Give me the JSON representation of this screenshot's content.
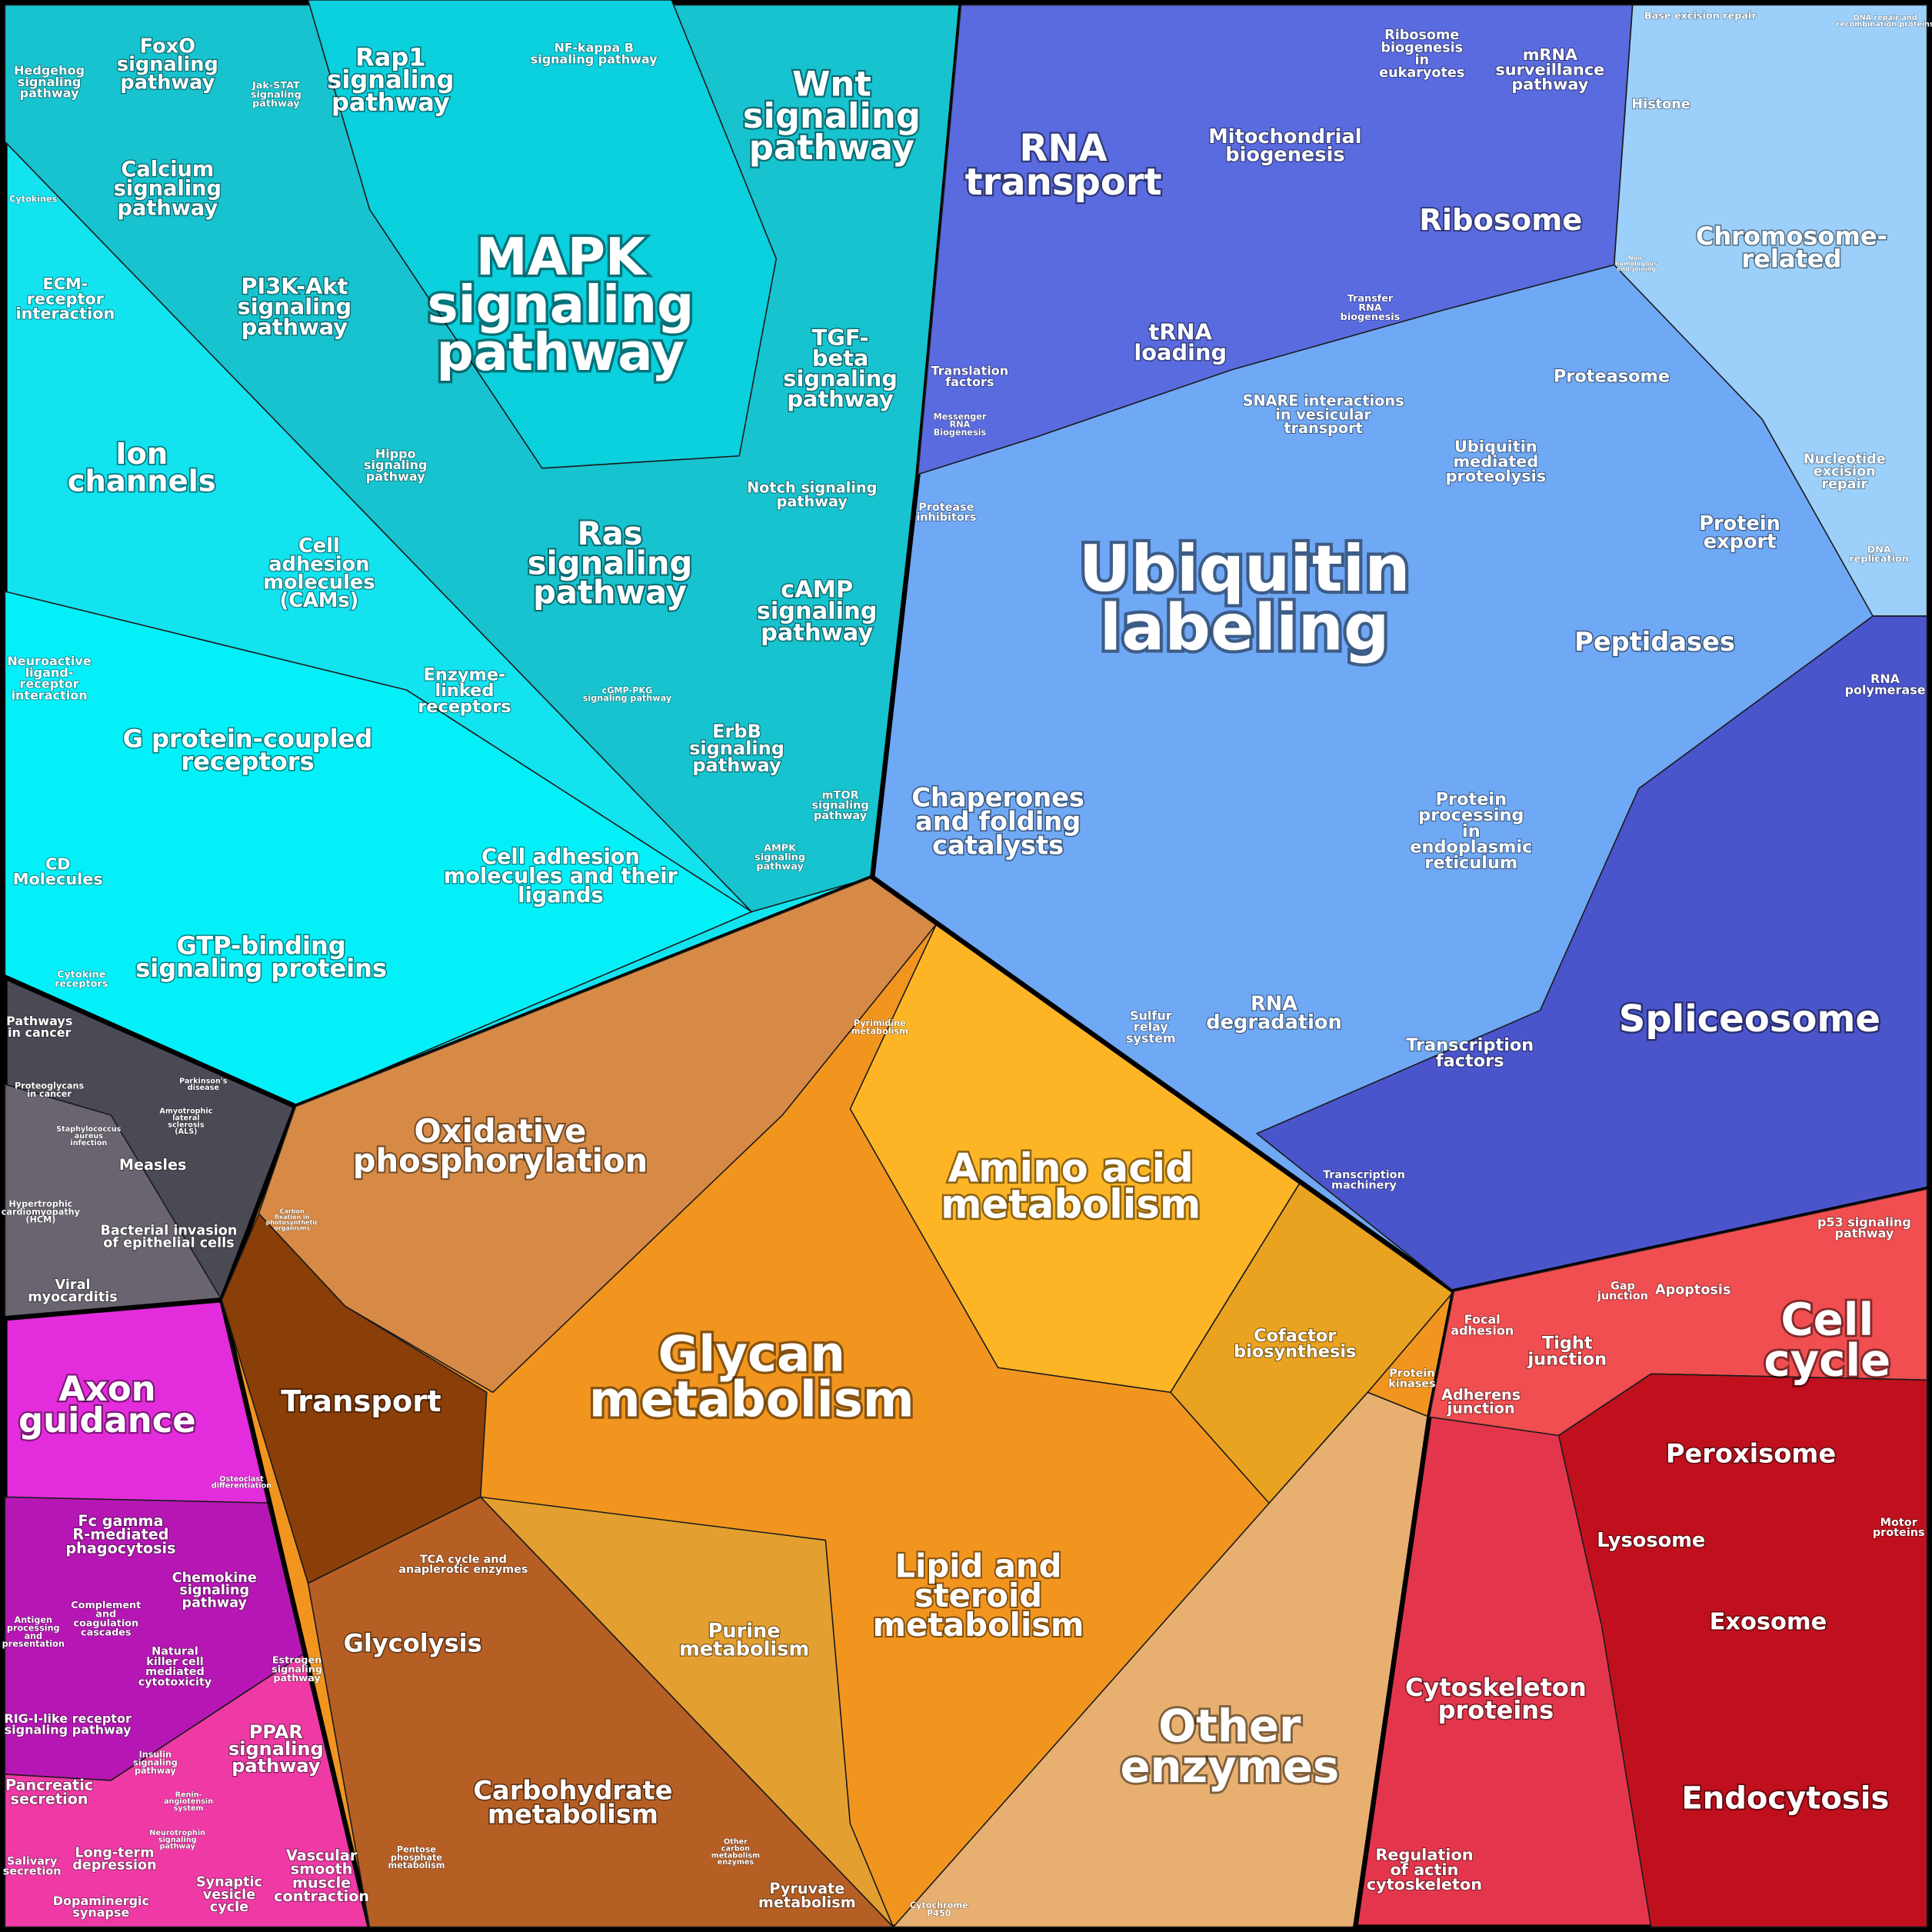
{
  "labels": [
    [
      "Hedgehog",
      "signaling",
      "pathway"
    ],
    [
      "FoxO",
      "signaling",
      "pathway"
    ],
    [
      "Jak-STAT",
      "signaling",
      "pathway"
    ],
    [
      "Rap1",
      "signaling",
      "pathway"
    ],
    [
      "NF-kappa B",
      "signaling pathway"
    ],
    [
      "Wnt",
      "signaling",
      "pathway"
    ],
    [
      "Cytokines"
    ],
    [
      "Calcium",
      "signaling",
      "pathway"
    ],
    [
      "ECM-",
      "receptor",
      "interaction"
    ],
    [
      "PI3K-Akt",
      "signaling",
      "pathway"
    ],
    [
      "MAPK",
      "signaling",
      "pathway"
    ],
    [
      "TGF-",
      "beta",
      "signaling",
      "pathway"
    ],
    [
      "Ion",
      "channels"
    ],
    [
      "Hippo",
      "signaling",
      "pathway"
    ],
    [
      "Notch signaling",
      "pathway"
    ],
    [
      "Ras",
      "signaling",
      "pathway"
    ],
    [
      "Cell",
      "adhesion",
      "molecules",
      "(CAMs)"
    ],
    [
      "cAMP",
      "signaling",
      "pathway"
    ],
    [
      "Neuroactive",
      "ligand-",
      "receptor",
      "interaction"
    ],
    [
      "Enzyme-",
      "linked",
      "receptors"
    ],
    [
      "cGMP-PKG",
      "signaling pathway"
    ],
    [
      "G protein-coupled",
      "receptors"
    ],
    [
      "ErbB",
      "signaling",
      "pathway"
    ],
    [
      "mTOR",
      "signaling",
      "pathway"
    ],
    [
      "AMPK",
      "signaling",
      "pathway"
    ],
    [
      "CD",
      "Molecules"
    ],
    [
      "Cell adhesion",
      "molecules and their",
      "ligands"
    ],
    [
      "GTP-binding",
      "signaling proteins"
    ],
    [
      "Cytokine",
      "receptors"
    ],
    [
      "Pathways",
      "in cancer"
    ],
    [
      "Proteoglycans",
      "in cancer"
    ],
    [
      "Parkinson's",
      "disease"
    ],
    [
      "Amyotrophic",
      "lateral",
      "sclerosis",
      "(ALS)"
    ],
    [
      "Staphylococcus",
      "aureus",
      "infection"
    ],
    [
      "Measles"
    ],
    [
      "Hypertrophic",
      "cardiomyopathy",
      "(HCM)"
    ],
    [
      "Bacterial invasion",
      "of epithelial cells"
    ],
    [
      "Viral",
      "myocarditis"
    ],
    [
      "Axon",
      "guidance"
    ],
    [
      "Osteoclast",
      "differentiation"
    ],
    [
      "Fc gamma",
      "R-mediated",
      "phagocytosis"
    ],
    [
      "Chemokine",
      "signaling",
      "pathway"
    ],
    [
      "Complement",
      "and",
      "coagulation",
      "cascades"
    ],
    [
      "Antigen",
      "processing",
      "and",
      "presentation"
    ],
    [
      "Natural",
      "killer cell",
      "mediated",
      "cytotoxicity"
    ],
    [
      "Estrogen",
      "signaling",
      "pathway"
    ],
    [
      "RIG-I-like receptor",
      "signaling pathway"
    ],
    [
      "PPAR",
      "signaling",
      "pathway"
    ],
    [
      "Insulin",
      "signaling",
      "pathway"
    ],
    [
      "Renin-",
      "angiotensin",
      "system"
    ],
    [
      "Pancreatic",
      "secretion"
    ],
    [
      "Neurotrophin",
      "signaling",
      "pathway"
    ],
    [
      "Long-term",
      "depression"
    ],
    [
      "Salivary",
      "secretion"
    ],
    [
      "Vascular",
      "smooth",
      "muscle",
      "contraction"
    ],
    [
      "Synaptic",
      "vesicle",
      "cycle"
    ],
    [
      "Dopaminergic",
      "synapse"
    ],
    [
      "Pyrimidine",
      "metabolism"
    ],
    [
      "Oxidative",
      "phosphorylation"
    ],
    [
      "Amino acid",
      "metabolism"
    ],
    [
      "Carbon",
      "fixation in",
      "photosynthetic",
      "organisms"
    ],
    [
      "Glycan",
      "metabolism"
    ],
    [
      "Transport"
    ],
    [
      "Cofactor",
      "biosynthesis"
    ],
    [
      "Protein",
      "kinases"
    ],
    [
      "TCA cycle and",
      "anaplerotic enzymes"
    ],
    [
      "Lipid and",
      "steroid",
      "metabolism"
    ],
    [
      "Glycolysis"
    ],
    [
      "Purine",
      "metabolism"
    ],
    [
      "Other",
      "enzymes"
    ],
    [
      "Carbohydrate",
      "metabolism"
    ],
    [
      "Pentose",
      "phosphate",
      "metabolism"
    ],
    [
      "Other",
      "carbon",
      "metabolism",
      "enzymes"
    ],
    [
      "Pyruvate",
      "metabolism"
    ],
    [
      "Cytochrome",
      "P450"
    ],
    [
      "Ribosome",
      "biogenesis",
      "in",
      "eukaryotes"
    ],
    [
      "mRNA",
      "surveillance",
      "pathway"
    ],
    [
      "Base excision repair"
    ],
    [
      "DNA repair and",
      "recombination proteins"
    ],
    [
      "RNA",
      "transport"
    ],
    [
      "Mitochondrial",
      "biogenesis"
    ],
    [
      "Histone"
    ],
    [
      "Ribosome"
    ],
    [
      "Chromosome-",
      "related"
    ],
    [
      "Non-",
      "homologous",
      "end-joining"
    ],
    [
      "Transfer",
      "RNA",
      "biogenesis"
    ],
    [
      "tRNA",
      "loading"
    ],
    [
      "Translation",
      "factors"
    ],
    [
      "Proteasome"
    ],
    [
      "SNARE interactions",
      "in vesicular",
      "transport"
    ],
    [
      "Messenger",
      "RNA",
      "Biogenesis"
    ],
    [
      "Ubiquitin",
      "mediated",
      "proteolysis"
    ],
    [
      "Nucleotide",
      "excision",
      "repair"
    ],
    [
      "Protease",
      "inhibitors"
    ],
    [
      "Protein",
      "export"
    ],
    [
      "Ubiquitin",
      "labeling"
    ],
    [
      "DNA",
      "replication"
    ],
    [
      "Peptidases"
    ],
    [
      "RNA",
      "polymerase"
    ],
    [
      "Chaperones",
      "and folding",
      "catalysts"
    ],
    [
      "Protein",
      "processing",
      "in",
      "endoplasmic",
      "reticulum"
    ],
    [
      "Spliceosome"
    ],
    [
      "Sulfur",
      "relay",
      "system"
    ],
    [
      "RNA",
      "degradation"
    ],
    [
      "Transcription",
      "factors"
    ],
    [
      "Transcription",
      "machinery"
    ],
    [
      "p53 signaling",
      "pathway"
    ],
    [
      "Focal",
      "adhesion"
    ],
    [
      "Gap",
      "junction"
    ],
    [
      "Apoptosis"
    ],
    [
      "Tight",
      "junction"
    ],
    [
      "Cell",
      "cycle"
    ],
    [
      "Adherens",
      "junction"
    ],
    [
      "Peroxisome"
    ],
    [
      "Motor",
      "proteins"
    ],
    [
      "Lysosome"
    ],
    [
      "Exosome"
    ],
    [
      "Cytoskeleton",
      "proteins"
    ],
    [
      "Endocytosis"
    ],
    [
      "Regulation",
      "of actin",
      "cytoskeleton"
    ]
  ]
}
